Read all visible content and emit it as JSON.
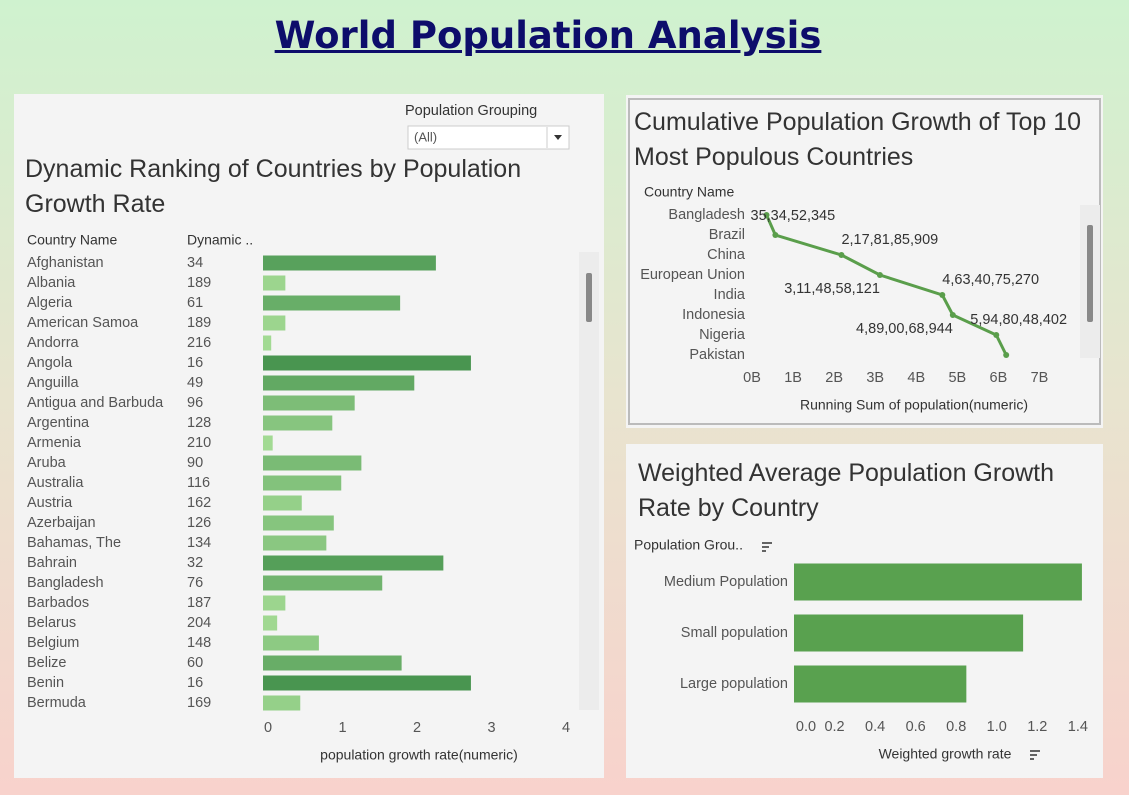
{
  "title": "World Population Analysis",
  "chart_data": [
    {
      "type": "bar",
      "title": "Dynamic Ranking of Countries by Population Growth Rate",
      "filter_label": "Population Grouping",
      "filter_value": "(All)",
      "category_header": "Country Name",
      "rank_header": "Dynamic ..",
      "categories": [
        "Afghanistan",
        "Albania",
        "Algeria",
        "American Samoa",
        "Andorra",
        "Angola",
        "Anguilla",
        "Antigua and Barbuda",
        "Argentina",
        "Armenia",
        "Aruba",
        "Australia",
        "Austria",
        "Azerbaijan",
        "Bahamas, The",
        "Bahrain",
        "Bangladesh",
        "Barbados",
        "Belarus",
        "Belgium",
        "Belize",
        "Benin",
        "Bermuda"
      ],
      "ranks": [
        34,
        189,
        61,
        189,
        216,
        16,
        49,
        96,
        128,
        210,
        90,
        116,
        162,
        126,
        134,
        32,
        76,
        187,
        204,
        148,
        60,
        16,
        169
      ],
      "values": [
        2.32,
        0.3,
        1.84,
        0.3,
        0.11,
        2.79,
        2.03,
        1.23,
        0.93,
        0.13,
        1.32,
        1.05,
        0.52,
        0.95,
        0.85,
        2.42,
        1.6,
        0.3,
        0.19,
        0.75,
        1.86,
        2.79,
        0.5
      ],
      "color_scale": [
        "#a6dd96",
        "#3a8a45"
      ],
      "xlabel": "population growth rate(numeric)",
      "xlim": [
        0,
        4.2
      ],
      "xticks": [
        0,
        1,
        2,
        3,
        4
      ]
    },
    {
      "type": "line",
      "title": "Cumulative Population Growth of Top 10 Most Populous Countries",
      "category_header": "Country Name",
      "categories": [
        "Bangladesh",
        "Brazil",
        "China",
        "European Union",
        "India",
        "Indonesia",
        "Nigeria",
        "Pakistan"
      ],
      "values": [
        353452345,
        569000000,
        2178185909,
        3114858121,
        4634075270,
        4890068944,
        5948048402,
        6190000000
      ],
      "value_labels": [
        "35,34,52,345",
        null,
        "2,17,81,85,909",
        "3,11,48,58,121",
        "4,63,40,75,270",
        "4,89,00,68,944",
        "5,94,80,48,402",
        null
      ],
      "color": "#5a9e4b",
      "xlabel": "Running Sum of population(numeric)",
      "xlim": [
        0,
        7500000000
      ],
      "xticks": [
        {
          "value": 0,
          "label": "0B"
        },
        {
          "value": 1000000000,
          "label": "1B"
        },
        {
          "value": 2000000000,
          "label": "2B"
        },
        {
          "value": 3000000000,
          "label": "3B"
        },
        {
          "value": 4000000000,
          "label": "4B"
        },
        {
          "value": 5000000000,
          "label": "5B"
        },
        {
          "value": 6000000000,
          "label": "6B"
        },
        {
          "value": 7000000000,
          "label": "7B"
        }
      ]
    },
    {
      "type": "bar",
      "title": "Weighted Average Population Growth Rate by Country",
      "category_header": "Population Grou..",
      "categories": [
        "Medium Population",
        "Small population",
        "Large population"
      ],
      "values": [
        1.42,
        1.13,
        0.85
      ],
      "color": "#59a14f",
      "xlabel": "Weighted growth rate",
      "xlim": [
        0,
        1.45
      ],
      "xticks": [
        {
          "value": 0,
          "label": "0.0"
        },
        0.2,
        0.4,
        0.6,
        0.8,
        {
          "value": 1,
          "label": "1.0"
        },
        1.2,
        1.4
      ]
    }
  ]
}
